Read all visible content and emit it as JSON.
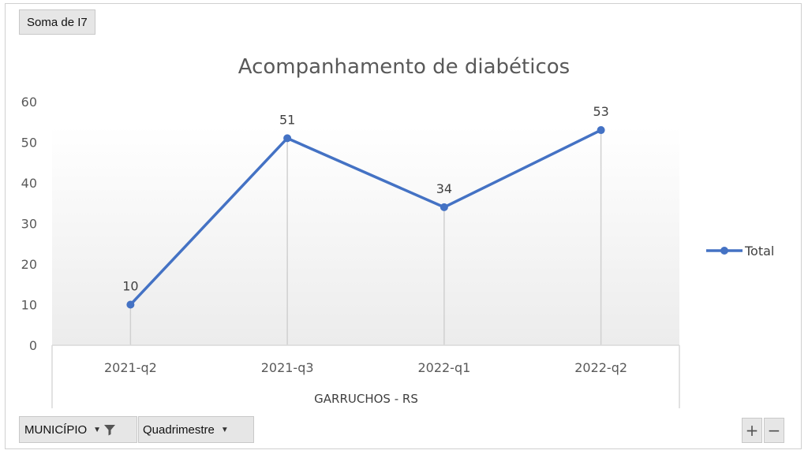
{
  "field_button": {
    "label": "Soma de I7"
  },
  "filters": {
    "municipio_label": "MUNICÍPIO",
    "quadrimestre_label": "Quadrimestre"
  },
  "zoom": {
    "plus": "+",
    "minus": "−"
  },
  "colors": {
    "series": "#4472c4",
    "text": "#595959",
    "axis": "#d9d9d9"
  },
  "chart_data": {
    "type": "line",
    "title": "Acompanhamento de diabéticos",
    "categories": [
      "2021-q2",
      "2021-q3",
      "2022-q1",
      "2022-q2"
    ],
    "group_label": "GARRUCHOS - RS",
    "series": [
      {
        "name": "Total",
        "values": [
          10,
          51,
          34,
          53
        ]
      }
    ],
    "ylim": [
      0,
      60
    ],
    "yticks": [
      0,
      10,
      20,
      30,
      40,
      50,
      60
    ],
    "data_labels": true,
    "grid": false,
    "legend": "right"
  }
}
